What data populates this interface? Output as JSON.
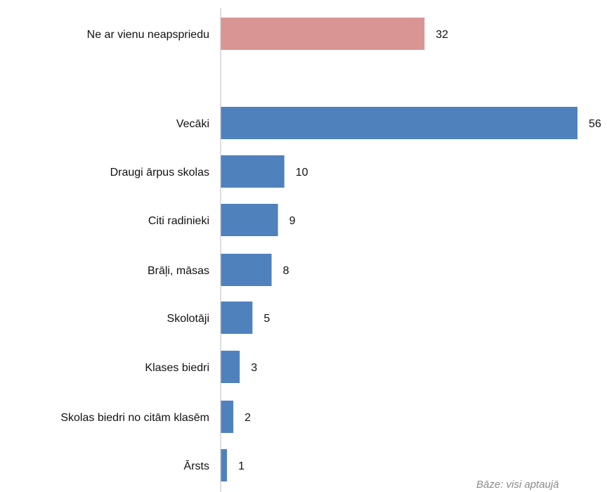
{
  "chart_data": {
    "type": "bar",
    "orientation": "horizontal",
    "categories": [
      "Ne ar vienu neapspriedu",
      "Vecāki",
      "Draugi ārpus skolas",
      "Citi radinieki",
      "Brāļi, māsas",
      "Skolotāji",
      "Klases biedri",
      "Skolas biedri no citām klasēm",
      "Ārsts"
    ],
    "values": [
      32,
      56,
      10,
      9,
      8,
      5,
      3,
      2,
      1
    ],
    "bar_colors": [
      "#d99594",
      "#4f81bd",
      "#4f81bd",
      "#4f81bd",
      "#4f81bd",
      "#4f81bd",
      "#4f81bd",
      "#4f81bd",
      "#4f81bd"
    ],
    "data_labels": [
      "32",
      "56",
      "10",
      "9",
      "8",
      "5",
      "3",
      "2",
      "1"
    ],
    "xlim": [
      0,
      56
    ],
    "grid": false,
    "legend": "none",
    "title": "",
    "xlabel": "",
    "ylabel": ""
  },
  "footnote": "Bāze: visi aptaujā"
}
